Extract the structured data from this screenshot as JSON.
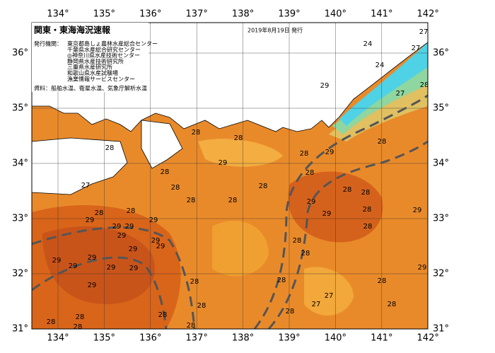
{
  "header": {
    "title": "関東・東海海況速報",
    "date": "2019年8月19日 発行"
  },
  "issuers": {
    "label": "発行機関：",
    "items": [
      "東京都島しょ農林水産総合センター",
      "千葉県水産総合研究センター",
      "◎神奈川県水産技術センター",
      "静岡県水産技術研究所",
      "三重県水産研究所",
      "和歌山県水産試験場",
      "漁業情報サービスセンター"
    ]
  },
  "source": "資料：船舶水温、衛星水温、気象庁解析水温",
  "longitude_labels": [
    "134°",
    "135°",
    "136°",
    "137°",
    "138°",
    "139°",
    "140°",
    "141°",
    "142°"
  ],
  "latitude_labels": [
    "31°",
    "32°",
    "33°",
    "34°",
    "35°",
    "36°"
  ],
  "contour_labels": [
    27,
    24,
    27,
    24,
    27,
    28,
    29,
    28,
    28,
    28,
    28,
    28,
    29,
    29,
    27,
    28,
    28,
    28,
    28,
    28,
    28,
    28,
    28,
    29,
    28,
    29,
    28,
    28,
    29,
    29,
    29,
    29,
    29,
    29,
    29,
    29,
    28,
    28,
    28,
    29,
    29,
    29,
    29,
    29,
    29,
    28,
    28,
    28,
    29,
    27,
    27,
    28,
    28,
    28,
    28,
    28,
    28,
    28,
    28,
    29
  ]
}
